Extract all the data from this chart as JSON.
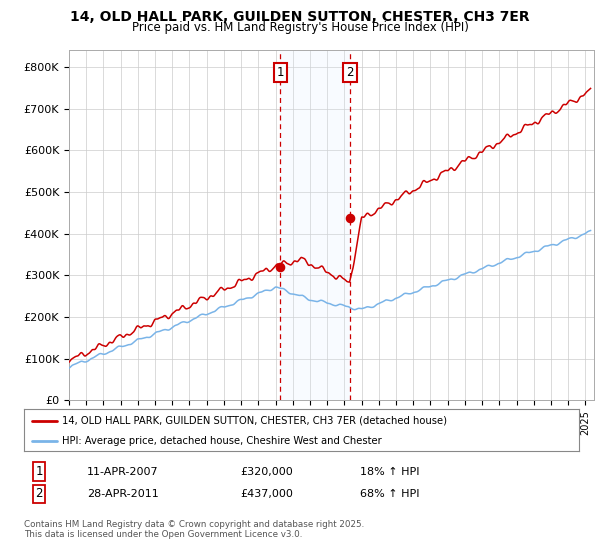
{
  "title": "14, OLD HALL PARK, GUILDEN SUTTON, CHESTER, CH3 7ER",
  "subtitle": "Price paid vs. HM Land Registry's House Price Index (HPI)",
  "ylabel_ticks": [
    "£0",
    "£100K",
    "£200K",
    "£300K",
    "£400K",
    "£500K",
    "£600K",
    "£700K",
    "£800K"
  ],
  "ytick_values": [
    0,
    100000,
    200000,
    300000,
    400000,
    500000,
    600000,
    700000,
    800000
  ],
  "ylim": [
    0,
    840000
  ],
  "xlim_start": 1995.0,
  "xlim_end": 2025.5,
  "hpi_color": "#7ab4e8",
  "price_color": "#cc0000",
  "marker1_x": 2007.27,
  "marker1_y": 320000,
  "marker2_x": 2011.32,
  "marker2_y": 437000,
  "legend_line1": "14, OLD HALL PARK, GUILDEN SUTTON, CHESTER, CH3 7ER (detached house)",
  "legend_line2": "HPI: Average price, detached house, Cheshire West and Chester",
  "table_row1_num": "1",
  "table_row1_date": "11-APR-2007",
  "table_row1_price": "£320,000",
  "table_row1_hpi": "18% ↑ HPI",
  "table_row2_num": "2",
  "table_row2_date": "28-APR-2011",
  "table_row2_price": "£437,000",
  "table_row2_hpi": "68% ↑ HPI",
  "footer": "Contains HM Land Registry data © Crown copyright and database right 2025.\nThis data is licensed under the Open Government Licence v3.0.",
  "background_color": "#ffffff",
  "plot_bg_color": "#ffffff",
  "grid_color": "#cccccc",
  "shade_color": "#ddeeff"
}
